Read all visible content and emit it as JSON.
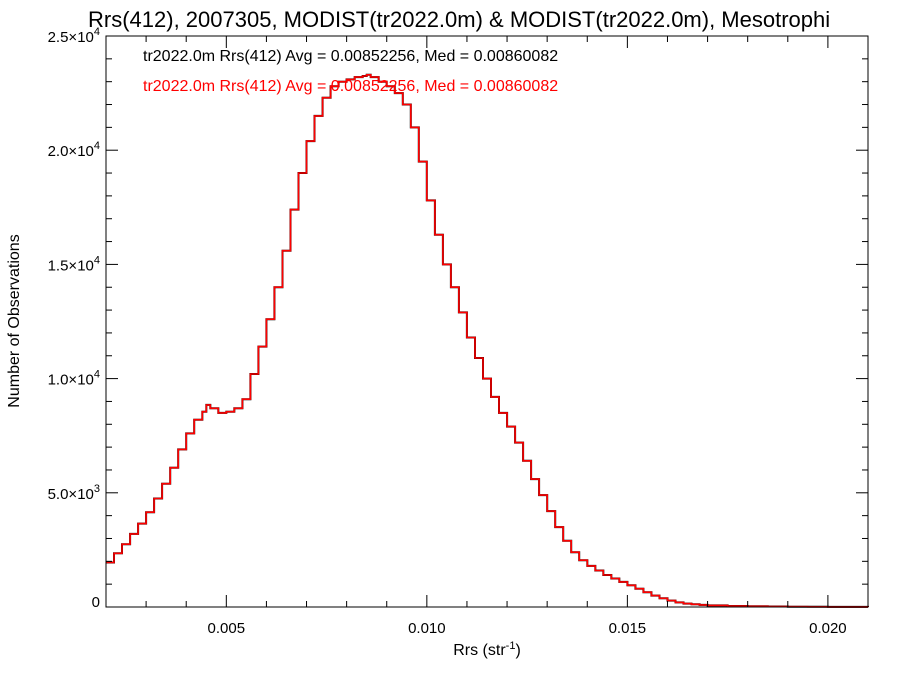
{
  "chart_data": {
    "type": "line",
    "title": "Rrs(412), 2007305, MODIST(tr2022.0m) & MODIST(tr2022.0m), Mesotrophi",
    "xlabel": "Rrs (str",
    "xlabel_sup": "-1",
    "xlabel_close": ")",
    "ylabel": "Number of Observations",
    "xlim": [
      0.002,
      0.021
    ],
    "ylim": [
      0,
      25000
    ],
    "grid": false,
    "legend_position": "top-left",
    "xticks": [
      {
        "value": 0.005,
        "label": "0.005"
      },
      {
        "value": 0.01,
        "label": "0.010"
      },
      {
        "value": 0.015,
        "label": "0.015"
      },
      {
        "value": 0.02,
        "label": "0.020"
      }
    ],
    "yticks": [
      {
        "value": 0,
        "mant": "0",
        "exp": ""
      },
      {
        "value": 5000,
        "mant": "5.0×10",
        "exp": "3"
      },
      {
        "value": 10000,
        "mant": "1.0×10",
        "exp": "4"
      },
      {
        "value": 15000,
        "mant": "1.5×10",
        "exp": "4"
      },
      {
        "value": 20000,
        "mant": "2.0×10",
        "exp": "4"
      },
      {
        "value": 25000,
        "mant": "2.5×10",
        "exp": "4"
      }
    ],
    "series": [
      {
        "name": "tr2022.0m Rrs(412) Avg = 0.00852256, Med = 0.00860082",
        "color": "#000000",
        "x": [
          0.002,
          0.0022,
          0.0024,
          0.0026,
          0.0028,
          0.003,
          0.0032,
          0.0034,
          0.0036,
          0.0038,
          0.004,
          0.0042,
          0.0044,
          0.0045,
          0.0046,
          0.0048,
          0.005,
          0.0052,
          0.0054,
          0.0056,
          0.0058,
          0.006,
          0.0062,
          0.0064,
          0.0066,
          0.0068,
          0.007,
          0.0072,
          0.0074,
          0.0076,
          0.0078,
          0.008,
          0.0082,
          0.0084,
          0.0085,
          0.0086,
          0.0088,
          0.009,
          0.0092,
          0.0094,
          0.0096,
          0.0098,
          0.01,
          0.0102,
          0.0104,
          0.0106,
          0.0108,
          0.011,
          0.0112,
          0.0114,
          0.0116,
          0.0118,
          0.012,
          0.0122,
          0.0124,
          0.0126,
          0.0128,
          0.013,
          0.0132,
          0.0134,
          0.0136,
          0.0138,
          0.014,
          0.0142,
          0.0144,
          0.0146,
          0.0148,
          0.015,
          0.0152,
          0.0154,
          0.0156,
          0.0158,
          0.016,
          0.0162,
          0.0164,
          0.0166,
          0.0168,
          0.017,
          0.0175,
          0.018,
          0.0185,
          0.019,
          0.0195,
          0.02,
          0.0205,
          0.021
        ],
        "y": [
          1950,
          2350,
          2750,
          3200,
          3650,
          4150,
          4750,
          5400,
          6100,
          6900,
          7600,
          8200,
          8550,
          8850,
          8700,
          8500,
          8550,
          8700,
          9100,
          10200,
          11400,
          12600,
          14000,
          15600,
          17400,
          19000,
          20400,
          21500,
          22300,
          22800,
          23000,
          23100,
          23200,
          23250,
          23300,
          23200,
          23000,
          22800,
          22500,
          22000,
          21000,
          19500,
          17800,
          16300,
          15000,
          14000,
          12900,
          11800,
          10900,
          10000,
          9200,
          8500,
          7900,
          7200,
          6400,
          5600,
          4900,
          4200,
          3500,
          2900,
          2400,
          2050,
          1800,
          1600,
          1400,
          1250,
          1100,
          950,
          800,
          650,
          500,
          380,
          280,
          200,
          150,
          120,
          90,
          70,
          45,
          30,
          20,
          12,
          8,
          5,
          3,
          2
        ]
      },
      {
        "name": "tr2022.0m Rrs(412) Avg = 0.00852256, Med = 0.00860082",
        "color": "#ff0000",
        "x": [
          0.002,
          0.0022,
          0.0024,
          0.0026,
          0.0028,
          0.003,
          0.0032,
          0.0034,
          0.0036,
          0.0038,
          0.004,
          0.0042,
          0.0044,
          0.0045,
          0.0046,
          0.0048,
          0.005,
          0.0052,
          0.0054,
          0.0056,
          0.0058,
          0.006,
          0.0062,
          0.0064,
          0.0066,
          0.0068,
          0.007,
          0.0072,
          0.0074,
          0.0076,
          0.0078,
          0.008,
          0.0082,
          0.0084,
          0.0085,
          0.0086,
          0.0088,
          0.009,
          0.0092,
          0.0094,
          0.0096,
          0.0098,
          0.01,
          0.0102,
          0.0104,
          0.0106,
          0.0108,
          0.011,
          0.0112,
          0.0114,
          0.0116,
          0.0118,
          0.012,
          0.0122,
          0.0124,
          0.0126,
          0.0128,
          0.013,
          0.0132,
          0.0134,
          0.0136,
          0.0138,
          0.014,
          0.0142,
          0.0144,
          0.0146,
          0.0148,
          0.015,
          0.0152,
          0.0154,
          0.0156,
          0.0158,
          0.016,
          0.0162,
          0.0164,
          0.0166,
          0.0168,
          0.017,
          0.0175,
          0.018,
          0.0185,
          0.019,
          0.0195,
          0.02,
          0.0205,
          0.021
        ],
        "y": [
          1950,
          2350,
          2750,
          3200,
          3650,
          4150,
          4750,
          5400,
          6100,
          6900,
          7600,
          8200,
          8550,
          8850,
          8700,
          8500,
          8550,
          8700,
          9100,
          10200,
          11400,
          12600,
          14000,
          15600,
          17400,
          19000,
          20400,
          21500,
          22300,
          22800,
          23000,
          23100,
          23200,
          23250,
          23300,
          23200,
          23000,
          22800,
          22500,
          22000,
          21000,
          19500,
          17800,
          16300,
          15000,
          14000,
          12900,
          11800,
          10900,
          10000,
          9200,
          8500,
          7900,
          7200,
          6400,
          5600,
          4900,
          4200,
          3500,
          2900,
          2400,
          2050,
          1800,
          1600,
          1400,
          1250,
          1100,
          950,
          800,
          650,
          500,
          380,
          280,
          200,
          150,
          120,
          90,
          70,
          45,
          30,
          20,
          12,
          8,
          5,
          3,
          2
        ]
      }
    ]
  }
}
